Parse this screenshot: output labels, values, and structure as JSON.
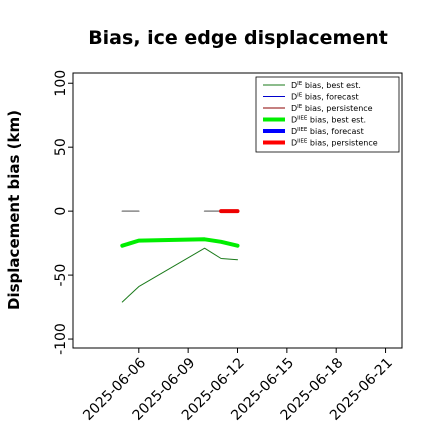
{
  "chart_data": {
    "type": "line",
    "title": "Bias, ice edge displacement",
    "ylabel": "Displacement bias (km)",
    "xlabel": "",
    "ylim": [
      -107,
      108
    ],
    "xlim": [
      "2025-06-02",
      "2025-06-22"
    ],
    "yticks": [
      100,
      50,
      0,
      -50,
      -100
    ],
    "ytick_labels": [
      "100",
      "50",
      "0",
      "-50",
      "-100"
    ],
    "xticks": [
      "2025-06-06",
      "2025-06-09",
      "2025-06-12",
      "2025-06-15",
      "2025-06-18",
      "2025-06-21"
    ],
    "highlighted_xtick": "2025-06-12",
    "highlight_color": "#2e8b2e",
    "grid": false,
    "legend_position": "upper right",
    "legend": [
      {
        "label_main": "D",
        "label_sup": "IE",
        "label_rest": " bias, best est.",
        "color": "#1a7a1a",
        "width": 1
      },
      {
        "label_main": "D",
        "label_sup": "IE",
        "label_rest": " bias, forecast",
        "color": "#0000cc",
        "width": 1
      },
      {
        "label_main": "D",
        "label_sup": "IE",
        "label_rest": " bias, persistence",
        "color": "#8b0000",
        "width": 1
      },
      {
        "label_main": "D",
        "label_sup": "IIEE",
        "label_rest": " bias, best est.",
        "color": "#00ee00",
        "width": 4
      },
      {
        "label_main": "D",
        "label_sup": "IIEE",
        "label_rest": " bias, forecast",
        "color": "#0000ff",
        "width": 4
      },
      {
        "label_main": "D",
        "label_sup": "IIEE",
        "label_rest": " bias, persistence",
        "color": "#ff0000",
        "width": 4
      }
    ],
    "series": [
      {
        "key": "ie_best",
        "color": "#1a7a1a",
        "width": 1,
        "points": [
          [
            "2025-06-05",
            -71
          ],
          [
            "2025-06-06",
            -59
          ],
          [
            "2025-06-10",
            -29
          ],
          [
            "2025-06-11",
            -37
          ],
          [
            "2025-06-12",
            -38
          ]
        ]
      },
      {
        "key": "ie_forecast_persistence",
        "color": "#888888",
        "width": 1.5,
        "points": [
          [
            "2025-06-05",
            0
          ],
          [
            "2025-06-06",
            0
          ]
        ]
      },
      {
        "key": "ie_forecast_persistence_2",
        "color": "#888888",
        "width": 1.5,
        "points": [
          [
            "2025-06-10",
            0
          ],
          [
            "2025-06-11",
            0
          ],
          [
            "2025-06-12",
            0
          ]
        ]
      },
      {
        "key": "iiee_best",
        "color": "#00ee00",
        "width": 4,
        "points": [
          [
            "2025-06-05",
            -27
          ],
          [
            "2025-06-06",
            -23
          ],
          [
            "2025-06-10",
            -22
          ],
          [
            "2025-06-11",
            -24
          ],
          [
            "2025-06-12",
            -27
          ]
        ]
      },
      {
        "key": "iiee_persistence",
        "color": "#ee0000",
        "width": 4,
        "points": [
          [
            "2025-06-11",
            0
          ],
          [
            "2025-06-12",
            0
          ]
        ]
      }
    ]
  }
}
